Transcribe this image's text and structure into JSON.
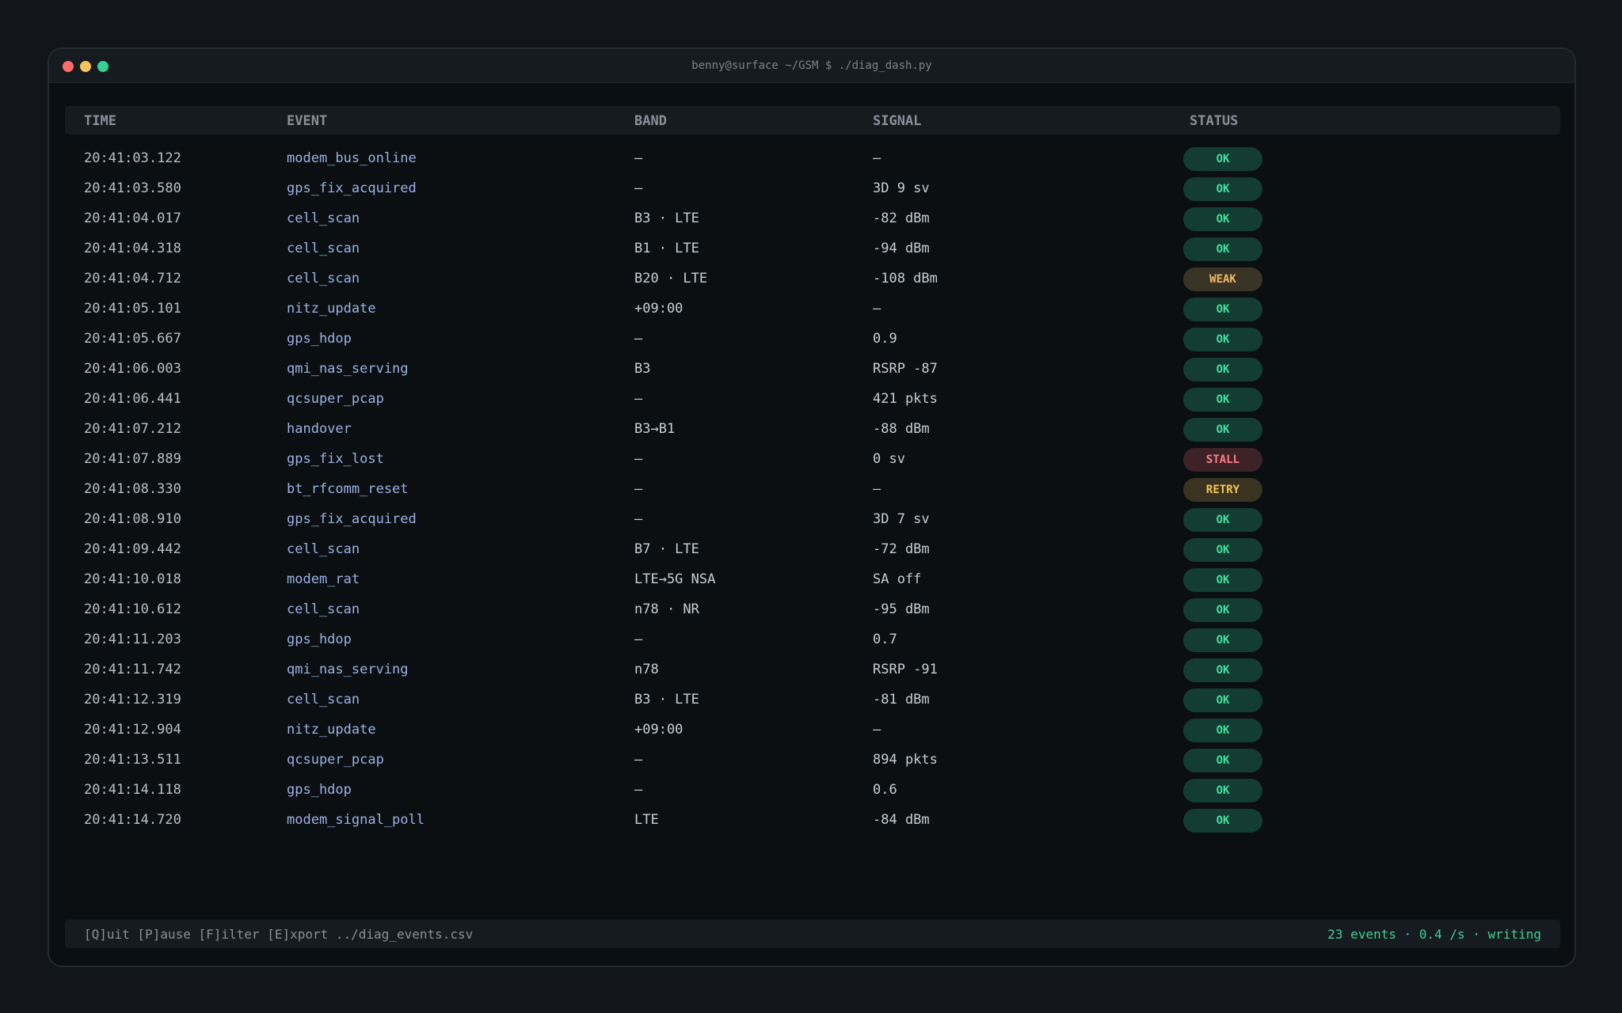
{
  "window": {
    "title": "benny@surface ~/GSM $ ./diag_dash.py"
  },
  "table": {
    "headers": {
      "time": "TIME",
      "event": "EVENT",
      "band": "BAND",
      "signal": "SIGNAL",
      "status": "STATUS"
    },
    "rows": [
      {
        "time": "20:41:03.122",
        "event": "modem_bus_online",
        "band": "—",
        "signal": "—",
        "status": "OK",
        "status_kind": "ok"
      },
      {
        "time": "20:41:03.580",
        "event": "gps_fix_acquired",
        "band": "—",
        "signal": "3D 9 sv",
        "status": "OK",
        "status_kind": "ok"
      },
      {
        "time": "20:41:04.017",
        "event": "cell_scan",
        "band": "B3 · LTE",
        "signal": "-82 dBm",
        "status": "OK",
        "status_kind": "ok"
      },
      {
        "time": "20:41:04.318",
        "event": "cell_scan",
        "band": "B1 · LTE",
        "signal": "-94 dBm",
        "status": "OK",
        "status_kind": "ok"
      },
      {
        "time": "20:41:04.712",
        "event": "cell_scan",
        "band": "B20 · LTE",
        "signal": "-108 dBm",
        "status": "WEAK",
        "status_kind": "weak"
      },
      {
        "time": "20:41:05.101",
        "event": "nitz_update",
        "band": "+09:00",
        "signal": "—",
        "status": "OK",
        "status_kind": "ok"
      },
      {
        "time": "20:41:05.667",
        "event": "gps_hdop",
        "band": "—",
        "signal": "0.9",
        "status": "OK",
        "status_kind": "ok"
      },
      {
        "time": "20:41:06.003",
        "event": "qmi_nas_serving",
        "band": "B3",
        "signal": "RSRP -87",
        "status": "OK",
        "status_kind": "ok"
      },
      {
        "time": "20:41:06.441",
        "event": "qcsuper_pcap",
        "band": "—",
        "signal": "421 pkts",
        "status": "OK",
        "status_kind": "ok"
      },
      {
        "time": "20:41:07.212",
        "event": "handover",
        "band": "B3→B1",
        "signal": "-88 dBm",
        "status": "OK",
        "status_kind": "ok"
      },
      {
        "time": "20:41:07.889",
        "event": "gps_fix_lost",
        "band": "—",
        "signal": "0 sv",
        "status": "STALL",
        "status_kind": "stall"
      },
      {
        "time": "20:41:08.330",
        "event": "bt_rfcomm_reset",
        "band": "—",
        "signal": "—",
        "status": "RETRY",
        "status_kind": "retry"
      },
      {
        "time": "20:41:08.910",
        "event": "gps_fix_acquired",
        "band": "—",
        "signal": "3D 7 sv",
        "status": "OK",
        "status_kind": "ok"
      },
      {
        "time": "20:41:09.442",
        "event": "cell_scan",
        "band": "B7 · LTE",
        "signal": "-72 dBm",
        "status": "OK",
        "status_kind": "ok"
      },
      {
        "time": "20:41:10.018",
        "event": "modem_rat",
        "band": "LTE→5G NSA",
        "signal": "SA off",
        "status": "OK",
        "status_kind": "ok"
      },
      {
        "time": "20:41:10.612",
        "event": "cell_scan",
        "band": "n78 · NR",
        "signal": "-95 dBm",
        "status": "OK",
        "status_kind": "ok"
      },
      {
        "time": "20:41:11.203",
        "event": "gps_hdop",
        "band": "—",
        "signal": "0.7",
        "status": "OK",
        "status_kind": "ok"
      },
      {
        "time": "20:41:11.742",
        "event": "qmi_nas_serving",
        "band": "n78",
        "signal": "RSRP -91",
        "status": "OK",
        "status_kind": "ok"
      },
      {
        "time": "20:41:12.319",
        "event": "cell_scan",
        "band": "B3 · LTE",
        "signal": "-81 dBm",
        "status": "OK",
        "status_kind": "ok"
      },
      {
        "time": "20:41:12.904",
        "event": "nitz_update",
        "band": "+09:00",
        "signal": "—",
        "status": "OK",
        "status_kind": "ok"
      },
      {
        "time": "20:41:13.511",
        "event": "qcsuper_pcap",
        "band": "—",
        "signal": "894 pkts",
        "status": "OK",
        "status_kind": "ok"
      },
      {
        "time": "20:41:14.118",
        "event": "gps_hdop",
        "band": "—",
        "signal": "0.6",
        "status": "OK",
        "status_kind": "ok"
      },
      {
        "time": "20:41:14.720",
        "event": "modem_signal_poll",
        "band": "LTE",
        "signal": "-84 dBm",
        "status": "OK",
        "status_kind": "ok"
      }
    ]
  },
  "footer": {
    "keys": "[Q]uit [P]ause [F]ilter [E]xport ../diag_events.csv",
    "stats": "23 events · 0.4 /s · writing"
  },
  "colors": {
    "ok": "#44e0a0",
    "weak": "#f0b86a",
    "stall": "#ff7d85",
    "retry": "#f2c94c",
    "accent": "#3ecf94"
  }
}
